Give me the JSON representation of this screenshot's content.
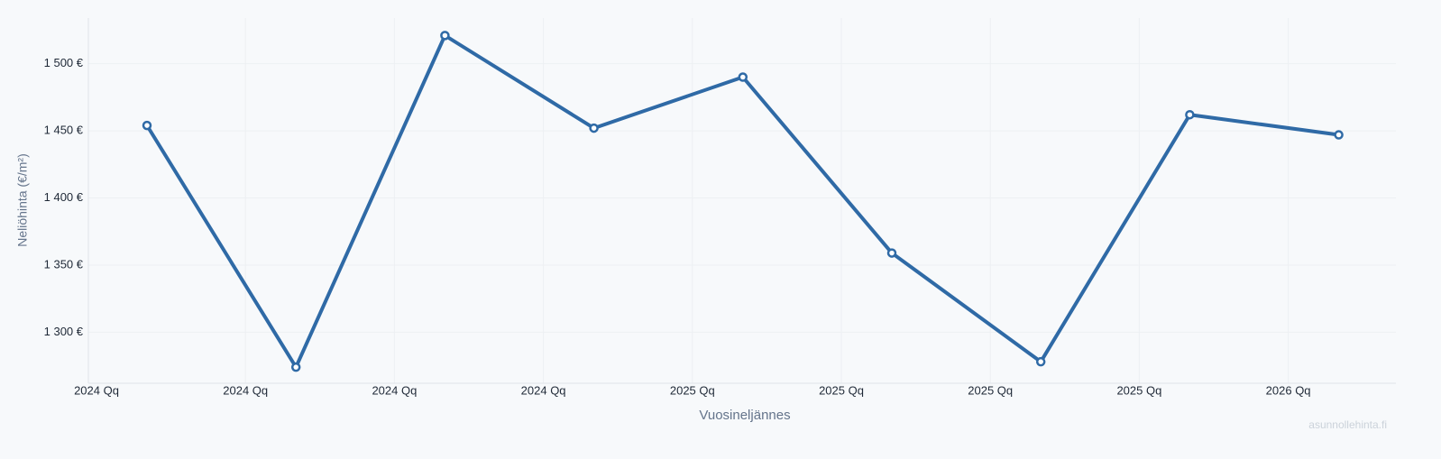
{
  "chart_data": {
    "type": "line",
    "x_label": "Vuosineljännes",
    "y_label": "Neliöhinta (€/m²)",
    "watermark": "asunnollehinta.fi",
    "categories": [
      "2024 Qq",
      "2024 Qq",
      "2024 Qq",
      "2024 Qq",
      "2025 Qq",
      "2025 Qq",
      "2025 Qq",
      "2025 Qq",
      "2026 Qq"
    ],
    "series": [
      {
        "name": "Neliöhinta",
        "color": "#2f6aa6",
        "values": [
          1454,
          1274,
          1521,
          1452,
          1490,
          1359,
          1278,
          1462,
          1447
        ]
      }
    ],
    "ylim": [
      1262,
      1534
    ],
    "yticks": [
      {
        "value": 1300,
        "label": "1 300 €"
      },
      {
        "value": 1350,
        "label": "1 350 €"
      },
      {
        "value": 1400,
        "label": "1 400 €"
      },
      {
        "value": 1450,
        "label": "1 450 €"
      },
      {
        "value": 1500,
        "label": "1 500 €"
      }
    ],
    "grid": true
  }
}
